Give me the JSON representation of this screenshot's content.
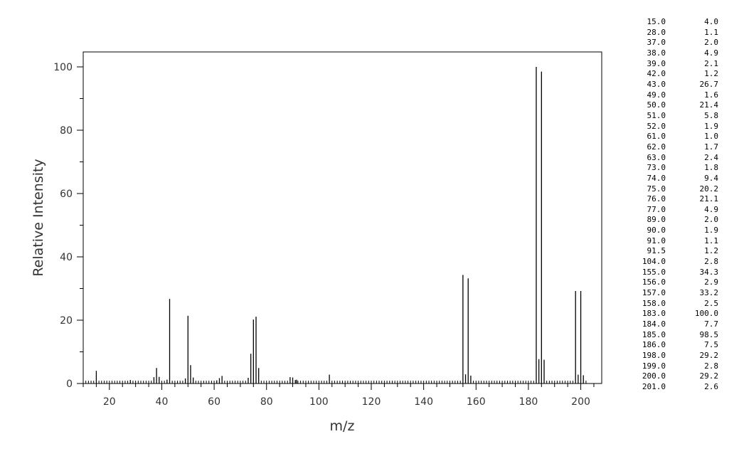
{
  "chart_data": {
    "type": "bar",
    "xlabel": "m/z",
    "ylabel": "Relative Intensity",
    "xlim": [
      10,
      208
    ],
    "ylim": [
      0,
      106
    ],
    "x_ticks_major": [
      20,
      40,
      60,
      80,
      100,
      120,
      140,
      160,
      180,
      200
    ],
    "y_ticks_major": [
      0,
      20,
      40,
      60,
      80,
      100
    ],
    "grid": false,
    "bar_color": "#000000",
    "baseline_ticks": [
      11,
      12,
      13,
      14,
      16,
      17,
      18,
      19,
      20,
      21,
      22,
      23,
      24,
      25,
      26,
      27,
      29,
      30,
      31,
      32,
      33,
      34,
      35,
      36,
      40,
      41,
      44,
      45,
      46,
      47,
      48,
      53,
      54,
      55,
      56,
      57,
      58,
      59,
      60,
      64,
      65,
      66,
      67,
      68,
      69,
      70,
      71,
      72,
      78,
      79,
      80,
      81,
      82,
      83,
      84,
      85,
      86,
      87,
      88,
      92,
      93,
      94,
      95,
      96,
      97,
      98,
      99,
      100,
      101,
      102,
      103,
      105,
      106,
      107,
      108,
      109,
      110,
      111,
      112,
      113,
      114,
      115,
      116,
      117,
      118,
      119,
      120,
      121,
      122,
      123,
      124,
      125,
      126,
      127,
      128,
      129,
      130,
      131,
      132,
      133,
      134,
      135,
      136,
      137,
      138,
      139,
      140,
      141,
      142,
      143,
      144,
      145,
      146,
      147,
      148,
      149,
      150,
      151,
      152,
      153,
      154,
      159,
      160,
      161,
      162,
      163,
      164,
      165,
      166,
      167,
      168,
      169,
      170,
      171,
      172,
      173,
      174,
      175,
      176,
      177,
      178,
      179,
      180,
      181,
      182,
      187,
      188,
      189,
      190,
      191,
      192,
      193,
      194,
      195,
      196,
      197,
      202
    ],
    "peaks": [
      {
        "mz": "15.0",
        "intensity": "4.0"
      },
      {
        "mz": "28.0",
        "intensity": "1.1"
      },
      {
        "mz": "37.0",
        "intensity": "2.0"
      },
      {
        "mz": "38.0",
        "intensity": "4.9"
      },
      {
        "mz": "39.0",
        "intensity": "2.1"
      },
      {
        "mz": "42.0",
        "intensity": "1.2"
      },
      {
        "mz": "43.0",
        "intensity": "26.7"
      },
      {
        "mz": "49.0",
        "intensity": "1.6"
      },
      {
        "mz": "50.0",
        "intensity": "21.4"
      },
      {
        "mz": "51.0",
        "intensity": "5.8"
      },
      {
        "mz": "52.0",
        "intensity": "1.9"
      },
      {
        "mz": "61.0",
        "intensity": "1.0"
      },
      {
        "mz": "62.0",
        "intensity": "1.7"
      },
      {
        "mz": "63.0",
        "intensity": "2.4"
      },
      {
        "mz": "73.0",
        "intensity": "1.8"
      },
      {
        "mz": "74.0",
        "intensity": "9.4"
      },
      {
        "mz": "75.0",
        "intensity": "20.2"
      },
      {
        "mz": "76.0",
        "intensity": "21.1"
      },
      {
        "mz": "77.0",
        "intensity": "4.9"
      },
      {
        "mz": "89.0",
        "intensity": "2.0"
      },
      {
        "mz": "90.0",
        "intensity": "1.9"
      },
      {
        "mz": "91.0",
        "intensity": "1.1"
      },
      {
        "mz": "91.5",
        "intensity": "1.2"
      },
      {
        "mz": "104.0",
        "intensity": "2.8"
      },
      {
        "mz": "155.0",
        "intensity": "34.3"
      },
      {
        "mz": "156.0",
        "intensity": "2.9"
      },
      {
        "mz": "157.0",
        "intensity": "33.2"
      },
      {
        "mz": "158.0",
        "intensity": "2.5"
      },
      {
        "mz": "183.0",
        "intensity": "100.0"
      },
      {
        "mz": "184.0",
        "intensity": "7.7"
      },
      {
        "mz": "185.0",
        "intensity": "98.5"
      },
      {
        "mz": "186.0",
        "intensity": "7.5"
      },
      {
        "mz": "198.0",
        "intensity": "29.2"
      },
      {
        "mz": "199.0",
        "intensity": "2.8"
      },
      {
        "mz": "200.0",
        "intensity": "29.2"
      },
      {
        "mz": "201.0",
        "intensity": "2.6"
      }
    ]
  }
}
